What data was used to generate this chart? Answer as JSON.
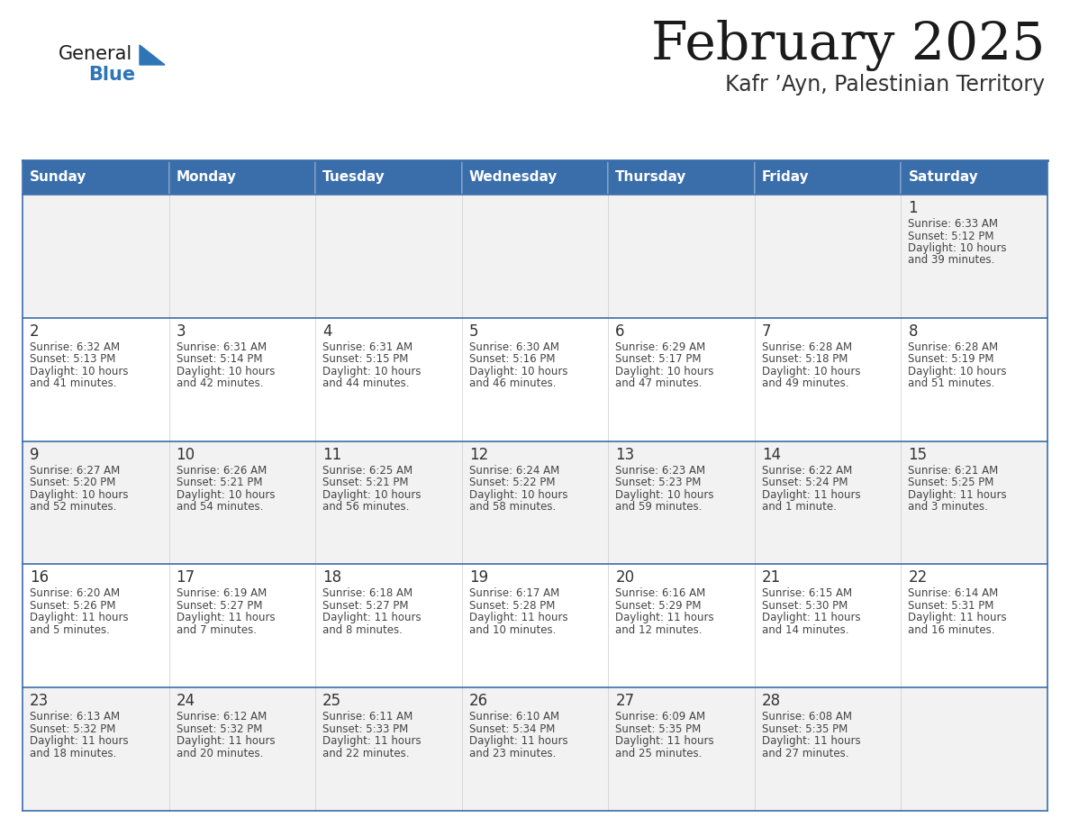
{
  "title": "February 2025",
  "subtitle": "Kafr ’Ayn, Palestinian Territory",
  "days_of_week": [
    "Sunday",
    "Monday",
    "Tuesday",
    "Wednesday",
    "Thursday",
    "Friday",
    "Saturday"
  ],
  "header_bg": "#3A6EAB",
  "header_text": "#FFFFFF",
  "cell_bg_light": "#F2F2F2",
  "cell_bg_white": "#FFFFFF",
  "border_color": "#3A6EAB",
  "text_color": "#444444",
  "day_number_color": "#333333",
  "logo_general_color": "#1a1a1a",
  "logo_blue_color": "#2E75B6",
  "calendar_data": [
    [
      null,
      null,
      null,
      null,
      null,
      null,
      {
        "day": 1,
        "sunrise": "6:33 AM",
        "sunset": "5:12 PM",
        "daylight_line1": "Daylight: 10 hours",
        "daylight_line2": "and 39 minutes."
      }
    ],
    [
      {
        "day": 2,
        "sunrise": "6:32 AM",
        "sunset": "5:13 PM",
        "daylight_line1": "Daylight: 10 hours",
        "daylight_line2": "and 41 minutes."
      },
      {
        "day": 3,
        "sunrise": "6:31 AM",
        "sunset": "5:14 PM",
        "daylight_line1": "Daylight: 10 hours",
        "daylight_line2": "and 42 minutes."
      },
      {
        "day": 4,
        "sunrise": "6:31 AM",
        "sunset": "5:15 PM",
        "daylight_line1": "Daylight: 10 hours",
        "daylight_line2": "and 44 minutes."
      },
      {
        "day": 5,
        "sunrise": "6:30 AM",
        "sunset": "5:16 PM",
        "daylight_line1": "Daylight: 10 hours",
        "daylight_line2": "and 46 minutes."
      },
      {
        "day": 6,
        "sunrise": "6:29 AM",
        "sunset": "5:17 PM",
        "daylight_line1": "Daylight: 10 hours",
        "daylight_line2": "and 47 minutes."
      },
      {
        "day": 7,
        "sunrise": "6:28 AM",
        "sunset": "5:18 PM",
        "daylight_line1": "Daylight: 10 hours",
        "daylight_line2": "and 49 minutes."
      },
      {
        "day": 8,
        "sunrise": "6:28 AM",
        "sunset": "5:19 PM",
        "daylight_line1": "Daylight: 10 hours",
        "daylight_line2": "and 51 minutes."
      }
    ],
    [
      {
        "day": 9,
        "sunrise": "6:27 AM",
        "sunset": "5:20 PM",
        "daylight_line1": "Daylight: 10 hours",
        "daylight_line2": "and 52 minutes."
      },
      {
        "day": 10,
        "sunrise": "6:26 AM",
        "sunset": "5:21 PM",
        "daylight_line1": "Daylight: 10 hours",
        "daylight_line2": "and 54 minutes."
      },
      {
        "day": 11,
        "sunrise": "6:25 AM",
        "sunset": "5:21 PM",
        "daylight_line1": "Daylight: 10 hours",
        "daylight_line2": "and 56 minutes."
      },
      {
        "day": 12,
        "sunrise": "6:24 AM",
        "sunset": "5:22 PM",
        "daylight_line1": "Daylight: 10 hours",
        "daylight_line2": "and 58 minutes."
      },
      {
        "day": 13,
        "sunrise": "6:23 AM",
        "sunset": "5:23 PM",
        "daylight_line1": "Daylight: 10 hours",
        "daylight_line2": "and 59 minutes."
      },
      {
        "day": 14,
        "sunrise": "6:22 AM",
        "sunset": "5:24 PM",
        "daylight_line1": "Daylight: 11 hours",
        "daylight_line2": "and 1 minute."
      },
      {
        "day": 15,
        "sunrise": "6:21 AM",
        "sunset": "5:25 PM",
        "daylight_line1": "Daylight: 11 hours",
        "daylight_line2": "and 3 minutes."
      }
    ],
    [
      {
        "day": 16,
        "sunrise": "6:20 AM",
        "sunset": "5:26 PM",
        "daylight_line1": "Daylight: 11 hours",
        "daylight_line2": "and 5 minutes."
      },
      {
        "day": 17,
        "sunrise": "6:19 AM",
        "sunset": "5:27 PM",
        "daylight_line1": "Daylight: 11 hours",
        "daylight_line2": "and 7 minutes."
      },
      {
        "day": 18,
        "sunrise": "6:18 AM",
        "sunset": "5:27 PM",
        "daylight_line1": "Daylight: 11 hours",
        "daylight_line2": "and 8 minutes."
      },
      {
        "day": 19,
        "sunrise": "6:17 AM",
        "sunset": "5:28 PM",
        "daylight_line1": "Daylight: 11 hours",
        "daylight_line2": "and 10 minutes."
      },
      {
        "day": 20,
        "sunrise": "6:16 AM",
        "sunset": "5:29 PM",
        "daylight_line1": "Daylight: 11 hours",
        "daylight_line2": "and 12 minutes."
      },
      {
        "day": 21,
        "sunrise": "6:15 AM",
        "sunset": "5:30 PM",
        "daylight_line1": "Daylight: 11 hours",
        "daylight_line2": "and 14 minutes."
      },
      {
        "day": 22,
        "sunrise": "6:14 AM",
        "sunset": "5:31 PM",
        "daylight_line1": "Daylight: 11 hours",
        "daylight_line2": "and 16 minutes."
      }
    ],
    [
      {
        "day": 23,
        "sunrise": "6:13 AM",
        "sunset": "5:32 PM",
        "daylight_line1": "Daylight: 11 hours",
        "daylight_line2": "and 18 minutes."
      },
      {
        "day": 24,
        "sunrise": "6:12 AM",
        "sunset": "5:32 PM",
        "daylight_line1": "Daylight: 11 hours",
        "daylight_line2": "and 20 minutes."
      },
      {
        "day": 25,
        "sunrise": "6:11 AM",
        "sunset": "5:33 PM",
        "daylight_line1": "Daylight: 11 hours",
        "daylight_line2": "and 22 minutes."
      },
      {
        "day": 26,
        "sunrise": "6:10 AM",
        "sunset": "5:34 PM",
        "daylight_line1": "Daylight: 11 hours",
        "daylight_line2": "and 23 minutes."
      },
      {
        "day": 27,
        "sunrise": "6:09 AM",
        "sunset": "5:35 PM",
        "daylight_line1": "Daylight: 11 hours",
        "daylight_line2": "and 25 minutes."
      },
      {
        "day": 28,
        "sunrise": "6:08 AM",
        "sunset": "5:35 PM",
        "daylight_line1": "Daylight: 11 hours",
        "daylight_line2": "and 27 minutes."
      },
      null
    ]
  ]
}
